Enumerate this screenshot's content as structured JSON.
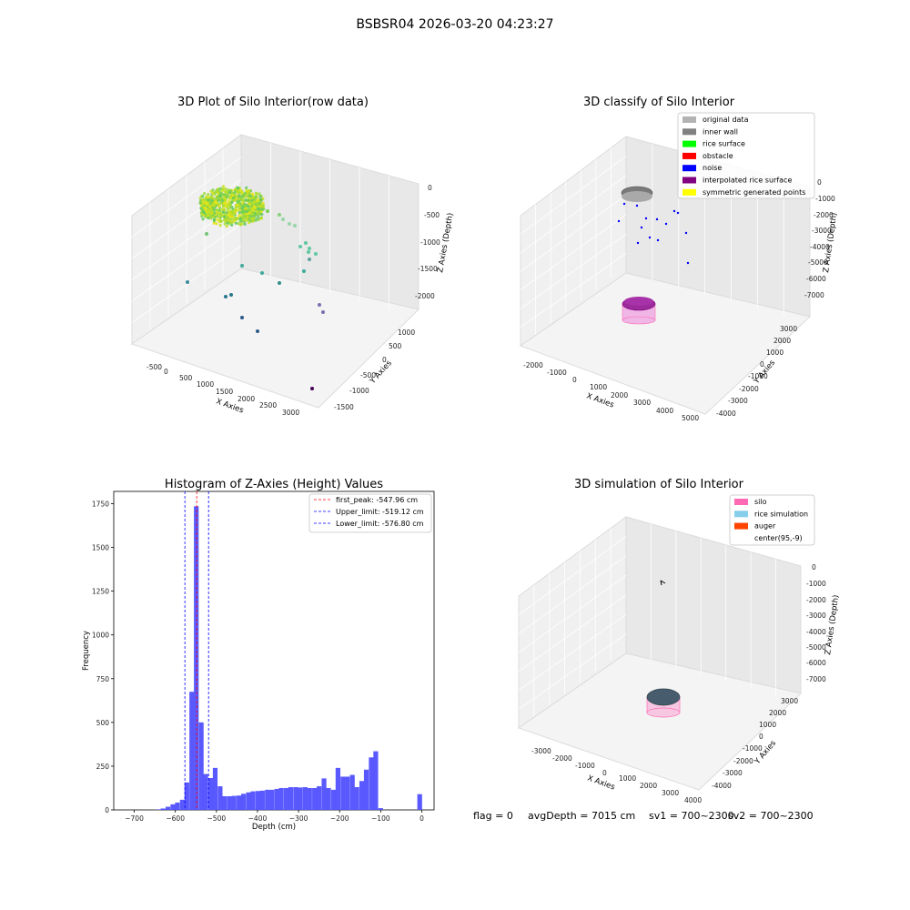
{
  "figure": {
    "suptitle": "BSBSR04 2026-03-20 04:23:27",
    "footer": {
      "flag": "flag = 0",
      "avg_depth": "avgDepth = 7015 cm",
      "sv1": "sv1 = 700~2300",
      "sv2": "sv2 = 700~2300"
    }
  },
  "chart_data": [
    {
      "type": "scatter",
      "projection": "3d",
      "title": "3D Plot of Silo Interior(row data)",
      "xlabel": "X Axies",
      "ylabel": "Y Axies",
      "zlabel": "Z Axies (Depth)",
      "x_ticks": [
        "-500",
        "0",
        "500",
        "1000",
        "1500",
        "2000",
        "2500",
        "3000"
      ],
      "y_ticks": [
        "-1500",
        "-1000",
        "-500",
        "0",
        "500",
        "1000"
      ],
      "z_ticks": [
        "0",
        "-500",
        "-1000",
        "-1500",
        "-2000"
      ],
      "colormap": "viridis"
    },
    {
      "type": "scatter",
      "projection": "3d",
      "title": "3D classify of Silo Interior",
      "xlabel": "X Axies",
      "ylabel": "Y Axies",
      "zlabel": "Z Axies (Depth)",
      "x_ticks": [
        "-2000",
        "-1000",
        "0",
        "1000",
        "2000",
        "3000",
        "4000",
        "5000"
      ],
      "y_ticks": [
        "-4000",
        "-3000",
        "-2000",
        "-1000",
        "0",
        "1000",
        "2000",
        "3000"
      ],
      "z_ticks": [
        "0",
        "-1000",
        "-2000",
        "-3000",
        "-4000",
        "-5000",
        "-6000",
        "-7000"
      ],
      "legend_position": "top-right",
      "legend": [
        {
          "label": "original data",
          "color": "#b3b3b3"
        },
        {
          "label": "inner wall",
          "color": "#808080"
        },
        {
          "label": "rice surface",
          "color": "#00ff00"
        },
        {
          "label": "obstacle",
          "color": "#ff0000"
        },
        {
          "label": "noise",
          "color": "#0000ff"
        },
        {
          "label": "interpolated rice surface",
          "color": "#800080"
        },
        {
          "label": "symmetric generated points",
          "color": "#ffff00"
        }
      ]
    },
    {
      "type": "bar",
      "title": "Histogram of Z-Axies (Height) Values",
      "xlabel": "Depth (cm)",
      "ylabel": "Frequency",
      "xlim": [
        -750,
        30
      ],
      "ylim": [
        0,
        1820
      ],
      "x_ticks": [
        -700,
        -600,
        -500,
        -400,
        -300,
        -200,
        -100,
        0
      ],
      "y_ticks": [
        0,
        250,
        500,
        750,
        1000,
        1250,
        1500,
        1750
      ],
      "bar_color": "#5050ff",
      "bin_width": 11.55,
      "bins": [
        {
          "x": -640,
          "y": 3
        },
        {
          "x": -630,
          "y": 8
        },
        {
          "x": -618,
          "y": 18
        },
        {
          "x": -606,
          "y": 32
        },
        {
          "x": -595,
          "y": 42
        },
        {
          "x": -583,
          "y": 58
        },
        {
          "x": -572,
          "y": 157
        },
        {
          "x": -560,
          "y": 675
        },
        {
          "x": -549,
          "y": 1735
        },
        {
          "x": -537,
          "y": 500
        },
        {
          "x": -526,
          "y": 205
        },
        {
          "x": -514,
          "y": 182
        },
        {
          "x": -503,
          "y": 240
        },
        {
          "x": -491,
          "y": 135
        },
        {
          "x": -480,
          "y": 78
        },
        {
          "x": -468,
          "y": 78
        },
        {
          "x": -457,
          "y": 80
        },
        {
          "x": -445,
          "y": 82
        },
        {
          "x": -434,
          "y": 92
        },
        {
          "x": -422,
          "y": 100
        },
        {
          "x": -411,
          "y": 106
        },
        {
          "x": -399,
          "y": 108
        },
        {
          "x": -388,
          "y": 110
        },
        {
          "x": -376,
          "y": 115
        },
        {
          "x": -365,
          "y": 115
        },
        {
          "x": -353,
          "y": 120
        },
        {
          "x": -342,
          "y": 125
        },
        {
          "x": -330,
          "y": 125
        },
        {
          "x": -319,
          "y": 130
        },
        {
          "x": -307,
          "y": 130
        },
        {
          "x": -296,
          "y": 128
        },
        {
          "x": -284,
          "y": 130
        },
        {
          "x": -273,
          "y": 125
        },
        {
          "x": -261,
          "y": 125
        },
        {
          "x": -250,
          "y": 135
        },
        {
          "x": -238,
          "y": 180
        },
        {
          "x": -227,
          "y": 125
        },
        {
          "x": -215,
          "y": 115
        },
        {
          "x": -204,
          "y": 240
        },
        {
          "x": -192,
          "y": 190
        },
        {
          "x": -181,
          "y": 190
        },
        {
          "x": -169,
          "y": 200
        },
        {
          "x": -158,
          "y": 130
        },
        {
          "x": -146,
          "y": 165
        },
        {
          "x": -135,
          "y": 230
        },
        {
          "x": -123,
          "y": 300
        },
        {
          "x": -112,
          "y": 335
        },
        {
          "x": -100,
          "y": 10
        },
        {
          "x": -5,
          "y": 90
        }
      ],
      "vlines": [
        {
          "x": -547.96,
          "color": "#ff0000",
          "label": "first_peak: -547.96 cm"
        },
        {
          "x": -519.12,
          "color": "#0000ff",
          "label": "Upper_limit: -519.12 cm"
        },
        {
          "x": -576.8,
          "color": "#0000ff",
          "label": "Lower_limit: -576.80 cm"
        }
      ],
      "legend_position": "top-right"
    },
    {
      "type": "scatter",
      "projection": "3d",
      "title": "3D simulation of Silo Interior",
      "xlabel": "X Axies",
      "ylabel": "Y Axies",
      "zlabel": "Z Axies (Depth)",
      "x_ticks": [
        "-3000",
        "-2000",
        "-1000",
        "0",
        "1000",
        "2000",
        "3000",
        "4000"
      ],
      "y_ticks": [
        "-4000",
        "-3000",
        "-2000",
        "-1000",
        "0",
        "1000",
        "2000",
        "3000"
      ],
      "z_ticks": [
        "0",
        "-1000",
        "-2000",
        "-3000",
        "-4000",
        "-5000",
        "-6000",
        "-7000"
      ],
      "legend_position": "top-right",
      "legend": [
        {
          "label": "silo",
          "color": "#ff69b4"
        },
        {
          "label": "rice simulation",
          "color": "#87ceeb"
        },
        {
          "label": "auger",
          "color": "#ff4500"
        },
        {
          "label": "center(95,-9)",
          "color": "#ffffff"
        }
      ]
    }
  ]
}
